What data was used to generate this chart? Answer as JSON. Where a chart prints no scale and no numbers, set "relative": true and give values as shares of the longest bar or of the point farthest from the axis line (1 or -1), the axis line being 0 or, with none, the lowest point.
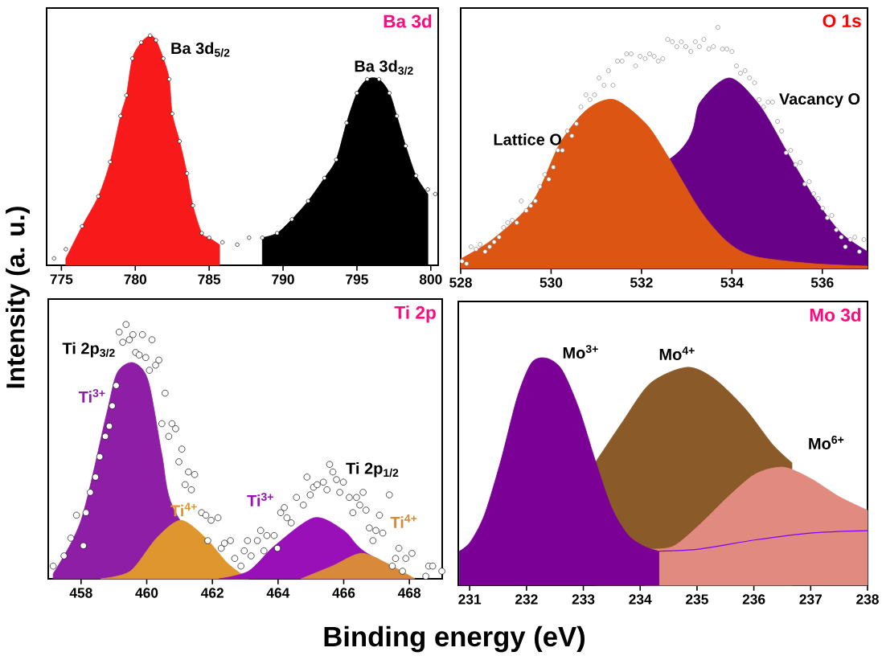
{
  "chart_data": [
    {
      "type": "area",
      "title": "Ba 3d",
      "ylabel": "Intensity (a. u.)",
      "relative": true,
      "xlim": [
        774,
        800.5
      ],
      "xticks": [
        775,
        780,
        785,
        790,
        795,
        800
      ],
      "annotations": [
        {
          "text": "Ba 3d$_{5/2}$",
          "x": 781.0,
          "y": 1.0
        },
        {
          "text": "Ba 3d$_{3/2}$",
          "x": 796.0,
          "y": 0.81
        }
      ],
      "series": [
        {
          "color": "#f81a1a",
          "x": [
            775.3,
            776.4,
            777.5,
            778.3,
            779.0,
            779.4,
            779.8,
            780.4,
            781.0,
            781.4,
            781.9,
            782.3,
            782.5,
            783.0,
            783.5,
            783.9,
            784.5,
            785.0,
            785.7
          ],
          "values": [
            0.03,
            0.17,
            0.3,
            0.45,
            0.65,
            0.74,
            0.9,
            0.97,
            1.0,
            0.98,
            0.9,
            0.81,
            0.66,
            0.54,
            0.4,
            0.26,
            0.14,
            0.12,
            0.09
          ]
        },
        {
          "color": "#000000",
          "x": [
            788.6,
            789.6,
            790.6,
            791.7,
            792.8,
            793.6,
            794.3,
            795.0,
            795.7,
            796.5,
            797.2,
            797.7,
            798.3,
            799.0,
            799.8
          ],
          "values": [
            0.12,
            0.14,
            0.2,
            0.28,
            0.38,
            0.46,
            0.62,
            0.75,
            0.81,
            0.81,
            0.75,
            0.65,
            0.52,
            0.39,
            0.31
          ]
        },
        {
          "type": "scatter",
          "marker": "circle",
          "color": "#000000",
          "x": [
            774.5,
            775.3,
            776.4,
            777.5,
            778.3,
            779.0,
            779.4,
            779.8,
            780.4,
            781.0,
            781.4,
            781.9,
            782.3,
            782.5,
            783.0,
            783.5,
            783.9,
            784.5,
            785.0,
            785.9,
            786.9,
            787.7,
            788.6,
            789.6,
            790.6,
            791.7,
            792.8,
            793.6,
            794.3,
            795.0,
            795.7,
            796.5,
            797.2,
            797.7,
            798.3,
            799.0,
            799.8,
            800.3
          ],
          "values": [
            0.03,
            0.07,
            0.17,
            0.3,
            0.45,
            0.65,
            0.74,
            0.9,
            0.97,
            1.0,
            0.98,
            0.9,
            0.81,
            0.66,
            0.54,
            0.4,
            0.26,
            0.14,
            0.12,
            0.1,
            0.09,
            0.12,
            0.12,
            0.14,
            0.2,
            0.28,
            0.38,
            0.46,
            0.62,
            0.75,
            0.81,
            0.81,
            0.75,
            0.65,
            0.52,
            0.39,
            0.33,
            0.31
          ]
        }
      ]
    },
    {
      "type": "area",
      "title": "O 1s",
      "relative": true,
      "xlim": [
        528,
        537
      ],
      "xticks": [
        528,
        530,
        532,
        534,
        536
      ],
      "series": [
        {
          "name": "Vacancy O",
          "color": "#680088",
          "x": [
            528.0,
            530.2,
            530.8,
            531.4,
            532.1,
            532.6,
            533.3,
            533.95,
            534.6,
            535.2,
            535.8,
            536.4,
            537.0
          ],
          "values": [
            0.0,
            null,
            null,
            null,
            null,
            0.45,
            0.69,
            0.79,
            0.68,
            0.49,
            0.3,
            0.15,
            0.07
          ]
        },
        {
          "name": "Lattice O",
          "color": "#dc5512",
          "x": [
            528.0,
            528.7,
            529.6,
            530.2,
            530.8,
            531.4,
            532.1,
            532.6,
            533.3,
            533.9,
            534.5,
            535.8,
            537.0
          ],
          "values": [
            0.04,
            0.12,
            0.28,
            0.52,
            0.66,
            0.7,
            0.6,
            0.46,
            0.24,
            0.11,
            0.05,
            0.02,
            0.01
          ]
        },
        {
          "type": "scatter",
          "marker": "circle",
          "color": "#808080",
          "x": [
            528.03,
            528.13,
            528.23,
            528.34,
            528.43,
            528.54,
            528.64,
            528.74,
            528.85,
            528.95,
            529.04,
            529.14,
            529.24,
            529.34,
            529.45,
            529.55,
            529.65,
            529.75,
            529.86,
            529.95,
            530.05,
            530.15,
            530.25,
            530.36,
            530.46,
            530.56,
            530.66,
            530.77,
            530.86,
            530.96,
            531.06,
            531.17,
            531.27,
            531.37,
            531.47,
            531.57,
            531.67,
            531.77,
            531.87,
            531.97,
            532.08,
            532.18,
            532.28,
            532.37,
            532.47,
            532.58,
            532.68,
            532.78,
            532.88,
            532.98,
            533.09,
            533.19,
            533.28,
            533.38,
            533.49,
            533.59,
            533.69,
            533.79,
            533.89,
            534.0,
            534.1,
            534.19,
            534.29,
            534.39,
            534.5,
            534.6,
            534.7,
            534.8,
            534.9,
            535.01,
            535.1,
            535.2,
            535.3,
            535.41,
            535.51,
            535.61,
            535.71,
            535.81,
            535.91,
            536.01,
            536.11,
            536.21,
            536.31,
            536.42,
            536.51,
            536.62,
            536.72,
            536.82,
            536.92
          ],
          "values": [
            0.03,
            0.02,
            0.09,
            0.08,
            0.1,
            0.07,
            0.09,
            0.11,
            0.13,
            0.17,
            0.19,
            0.2,
            0.19,
            0.28,
            0.24,
            0.26,
            0.28,
            0.34,
            0.39,
            0.37,
            0.42,
            0.49,
            0.49,
            0.57,
            0.55,
            0.6,
            0.67,
            0.72,
            0.7,
            0.72,
            0.79,
            0.76,
            0.82,
            0.76,
            0.86,
            0.86,
            0.89,
            0.89,
            0.84,
            0.88,
            0.87,
            0.89,
            0.88,
            0.86,
            0.87,
            0.95,
            0.94,
            0.92,
            0.94,
            0.92,
            0.9,
            0.94,
            0.92,
            0.95,
            0.91,
            0.92,
            1.0,
            0.91,
            0.91,
            0.9,
            0.84,
            0.81,
            0.82,
            0.79,
            0.77,
            0.7,
            0.67,
            0.69,
            0.69,
            0.61,
            0.57,
            0.48,
            0.49,
            0.43,
            0.44,
            0.35,
            0.36,
            0.31,
            0.29,
            0.25,
            0.21,
            0.22,
            0.16,
            0.13,
            0.09,
            0.12,
            0.13,
            0.07,
            0.12
          ]
        }
      ]
    },
    {
      "type": "area",
      "title": "Ti 2p",
      "xlabel": "Binding energy (eV)",
      "relative": true,
      "xlim": [
        457,
        469
      ],
      "xticks": [
        458,
        460,
        462,
        464,
        466,
        468
      ],
      "annotations": [
        {
          "text": "Ti 2p$_{3/2}$",
          "x": 459.58,
          "y": 0.85
        },
        {
          "text": "Ti 2p$_{1/2}$",
          "x": 465.57,
          "y": 0.45
        }
      ],
      "series": [
        {
          "name": "Ti$^{3+}$",
          "color": "#8e1ea6",
          "x": [
            457.15,
            458.0,
            458.78,
            459.1,
            459.58,
            460.04,
            460.46,
            460.8,
            461.3,
            461.8,
            462.2
          ],
          "values": [
            0.02,
            0.23,
            0.65,
            0.81,
            0.85,
            0.78,
            0.49,
            0.28,
            null,
            null,
            0.0
          ]
        },
        {
          "name": "Ti$^{4+}$",
          "color": "#e0962e",
          "x": [
            458.6,
            459.5,
            460.3,
            461.04,
            461.8,
            462.47,
            463.1
          ],
          "values": [
            0.0,
            0.03,
            0.16,
            0.23,
            0.16,
            0.06,
            0.0
          ]
        },
        {
          "name": "Ti$^{3+}$",
          "color": "#9a10b8",
          "x": [
            462.2,
            463.1,
            463.9,
            465.1,
            466.0,
            466.6,
            467.4,
            468.1
          ],
          "values": [
            0.0,
            0.03,
            0.13,
            0.24,
            0.19,
            0.11,
            null,
            0.0
          ]
        },
        {
          "name": "Ti$^{4+}$",
          "color": "#d9893a",
          "x": [
            464.7,
            465.65,
            466.53,
            467.33,
            468.17
          ],
          "values": [
            0.0,
            0.05,
            0.1,
            0.06,
            0.0
          ]
        },
        {
          "type": "scatter",
          "marker": "circle",
          "color": "#000000",
          "x": [
            457.15,
            457.48,
            457.69,
            457.86,
            458.07,
            458.15,
            458.28,
            458.44,
            458.57,
            458.74,
            458.86,
            458.95,
            459.07,
            459.16,
            459.27,
            459.37,
            459.47,
            459.58,
            459.66,
            459.77,
            459.87,
            459.97,
            460.08,
            460.16,
            460.27,
            460.37,
            460.46,
            460.56,
            460.67,
            460.77,
            460.88,
            460.98,
            461.07,
            461.17,
            461.27,
            461.36,
            461.46,
            461.67,
            461.8,
            461.86,
            461.96,
            462.17,
            462.27,
            462.37,
            462.55,
            462.68,
            462.87,
            462.97,
            463.07,
            463.18,
            463.37,
            463.47,
            463.57,
            463.66,
            463.88,
            463.98,
            464.08,
            464.19,
            464.27,
            464.4,
            464.56,
            464.77,
            464.88,
            464.98,
            465.08,
            465.19,
            465.38,
            465.49,
            465.57,
            465.67,
            465.78,
            465.88,
            465.99,
            466.17,
            466.28,
            466.39,
            466.49,
            466.59,
            466.68,
            466.78,
            466.89,
            466.98,
            467.09,
            467.19,
            467.39,
            467.48,
            467.58,
            467.68,
            467.79,
            467.89,
            468.08,
            468.5,
            468.59,
            468.71,
            468.99
          ],
          "values": [
            0.05,
            0.09,
            0.16,
            0.25,
            0.13,
            0.26,
            0.34,
            0.4,
            0.48,
            0.56,
            0.6,
            0.68,
            0.76,
            0.97,
            0.93,
            1.0,
            0.94,
            0.96,
            0.89,
            0.88,
            0.96,
            0.87,
            0.82,
            0.94,
            0.84,
            0.86,
            0.61,
            0.73,
            0.56,
            0.61,
            0.59,
            0.46,
            0.51,
            0.37,
            0.42,
            0.35,
            0.41,
            0.26,
            0.25,
            0.15,
            0.23,
            0.24,
            0.12,
            0.14,
            0.15,
            0.08,
            0.05,
            0.11,
            0.15,
            0.09,
            0.15,
            0.19,
            0.11,
            0.17,
            0.17,
            0.12,
            0.26,
            0.28,
            0.24,
            0.22,
            0.32,
            0.29,
            0.4,
            0.33,
            0.36,
            0.37,
            0.38,
            0.35,
            0.45,
            0.42,
            0.39,
            0.34,
            0.38,
            0.32,
            0.26,
            0.32,
            0.29,
            0.34,
            0.27,
            0.2,
            0.15,
            0.19,
            0.25,
            0.18,
            0.33,
            0.05,
            0.08,
            0.12,
            0.03,
            0.08,
            0.1,
            0.01,
            0.05,
            0.05,
            0.03
          ]
        }
      ]
    },
    {
      "type": "area",
      "title": "Mo 3d",
      "relative": true,
      "xlim": [
        230.8,
        238
      ],
      "xticks": [
        231,
        232,
        233,
        234,
        235,
        236,
        237,
        238
      ],
      "series": [
        {
          "name": "Mo$^{4+}$",
          "color": "#8a5a28",
          "x": [
            233.21,
            233.69,
            234.18,
            234.82,
            235.3,
            235.84,
            236.33,
            236.67
          ],
          "values": [
            0.54,
            0.72,
            0.89,
            0.96,
            0.91,
            0.78,
            0.62,
            0.54
          ]
        },
        {
          "name": "Mo$^{6+}$",
          "color": "#e08a80",
          "x": [
            234.08,
            234.57,
            235.06,
            235.55,
            236.03,
            236.52,
            237.0,
            237.5,
            238.0
          ],
          "values": [
            0.16,
            0.17,
            0.27,
            0.39,
            0.49,
            0.52,
            0.47,
            0.39,
            0.33
          ]
        },
        {
          "name": "Mo$^{3+}$",
          "color": "#7a0096",
          "x": [
            230.82,
            231.01,
            231.26,
            231.55,
            231.84,
            232.09,
            232.35,
            232.62,
            232.92,
            233.21,
            233.5,
            233.79,
            234.08,
            234.33
          ],
          "values": [
            0.15,
            0.19,
            0.31,
            0.55,
            0.83,
            0.98,
            1.0,
            0.95,
            0.78,
            0.55,
            0.34,
            0.22,
            0.17,
            0.15
          ]
        },
        {
          "type": "line",
          "color": "#7f00ff",
          "x": [
            234.33,
            235.06,
            236.03,
            237.0,
            238.0
          ],
          "values": [
            0.15,
            0.16,
            0.2,
            0.23,
            0.24
          ]
        }
      ]
    }
  ]
}
